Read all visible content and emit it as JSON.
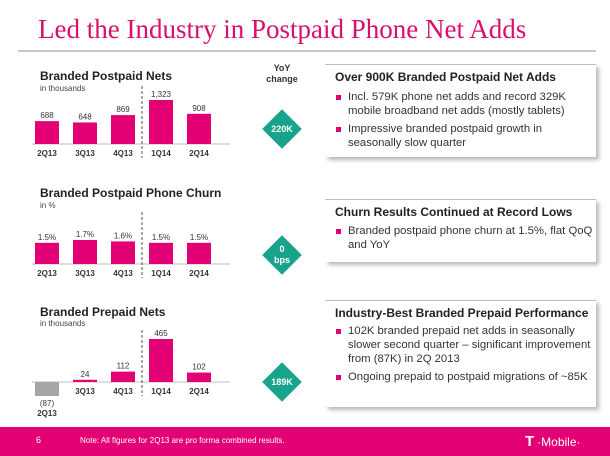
{
  "slide": {
    "title": "Led the Industry in Postpaid Phone Net Adds",
    "yoy_header": "YoY change",
    "page_number": "6",
    "footnote": "Note: All figures for 2Q13 are pro forma combined results.",
    "logo_letter": "T",
    "logo_text": "·Mobile·"
  },
  "panels": [
    {
      "title": "Branded Postpaid Nets",
      "subtitle": "in thousands",
      "yoy": "220K"
    },
    {
      "title": "Branded Postpaid Phone Churn",
      "subtitle": "in %",
      "yoy_top": "0",
      "yoy_bottom": "bps"
    },
    {
      "title": "Branded Prepaid Nets",
      "subtitle": "in thousands",
      "yoy": "189K"
    }
  ],
  "cards": [
    {
      "heading": "Over 900K Branded Postpaid Net Adds",
      "bullets": [
        "Incl. 579K phone net adds and record 329K mobile broadband net adds (mostly tablets)",
        "Impressive branded postpaid growth in seasonally slow quarter"
      ]
    },
    {
      "heading": "Churn Results Continued at Record Lows",
      "bullets": [
        "Branded postpaid phone churn at 1.5%, flat QoQ and YoY"
      ]
    },
    {
      "heading": "Industry-Best Branded Prepaid Performance",
      "bullets": [
        "102K branded prepaid net adds in seasonally slower second quarter – significant improvement from (87K) in 2Q 2013",
        "Ongoing prepaid to postpaid migrations of ~85K"
      ]
    }
  ],
  "colors": {
    "brand": "#e20074",
    "title": "#d8106a",
    "negative": "#a6a6a6",
    "yoy": "#19a38c"
  },
  "chart_data": [
    {
      "type": "bar",
      "categories": [
        "2Q13",
        "3Q13",
        "4Q13",
        "1Q14",
        "2Q14"
      ],
      "values": [
        688,
        648,
        869,
        1323,
        908
      ],
      "labels": [
        "688",
        "648",
        "869",
        "1,323",
        "908"
      ],
      "title": "Branded Postpaid Nets",
      "ylabel": "in thousands",
      "ylim": [
        0,
        1323
      ]
    },
    {
      "type": "bar",
      "categories": [
        "2Q13",
        "3Q13",
        "4Q13",
        "1Q14",
        "2Q14"
      ],
      "values": [
        1.5,
        1.7,
        1.6,
        1.5,
        1.5
      ],
      "labels": [
        "1.5%",
        "1.7%",
        "1.6%",
        "1.5%",
        "1.5%"
      ],
      "title": "Branded Postpaid Phone Churn",
      "ylabel": "in %",
      "ylim": [
        0,
        1.7
      ]
    },
    {
      "type": "bar",
      "categories": [
        "2Q13",
        "3Q13",
        "4Q13",
        "1Q14",
        "2Q14"
      ],
      "values": [
        -87,
        24,
        112,
        465,
        102
      ],
      "labels": [
        "(87)",
        "24",
        "112",
        "465",
        "102"
      ],
      "title": "Branded Prepaid Nets",
      "ylabel": "in thousands",
      "ylim": [
        -87,
        465
      ]
    }
  ]
}
